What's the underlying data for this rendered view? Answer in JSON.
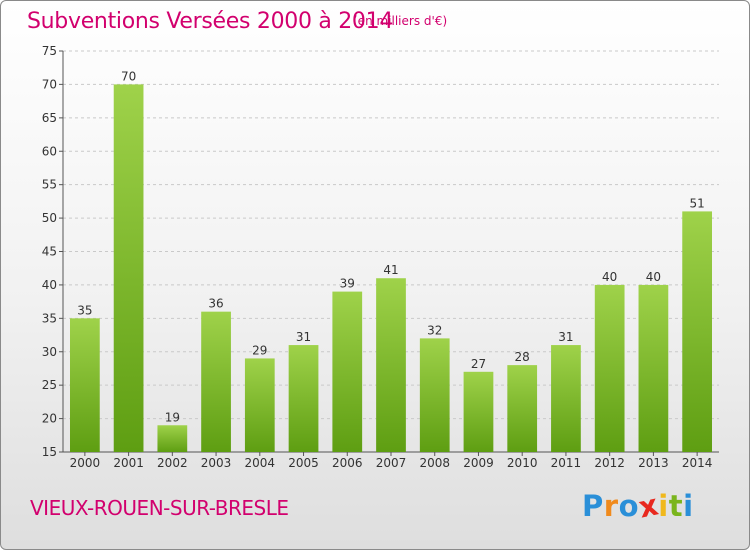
{
  "title": "Subventions Versées 2000 à 2014",
  "unit": "(en milliers d'€)",
  "commune": "VIEUX-ROUEN-SUR-BRESLE",
  "logo": {
    "letters": [
      "P",
      "r",
      "o",
      "x",
      "i",
      "t",
      "i"
    ],
    "colors": [
      "#2a8fd8",
      "#f08a1c",
      "#2a8fd8",
      "#e8281e",
      "#f0b81c",
      "#7ab51d",
      "#2a8fd8"
    ]
  },
  "colors": {
    "bar_light": "#9fd24a",
    "bar_dark": "#5e9e12",
    "title": "#d2006e",
    "grid": "#c9c9c9"
  },
  "chart_data": {
    "type": "bar",
    "title": "Subventions Versées 2000 à 2014",
    "xlabel": "",
    "ylabel": "",
    "categories": [
      "2000",
      "2001",
      "2002",
      "2003",
      "2004",
      "2005",
      "2006",
      "2007",
      "2008",
      "2009",
      "2010",
      "2011",
      "2012",
      "2013",
      "2014"
    ],
    "values": [
      35,
      70,
      19,
      36,
      29,
      31,
      39,
      41,
      32,
      27,
      28,
      31,
      40,
      40,
      51
    ],
    "ylim": [
      15,
      75
    ],
    "yticks": [
      15,
      20,
      25,
      30,
      35,
      40,
      45,
      50,
      55,
      60,
      65,
      70,
      75
    ],
    "grid": true,
    "legend": "none"
  }
}
